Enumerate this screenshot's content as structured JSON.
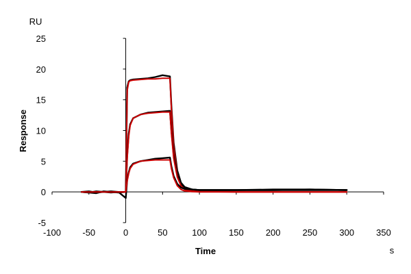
{
  "chart_data": {
    "type": "line",
    "title": "",
    "xlabel": "Time",
    "ylabel": "Response",
    "x_unit": "s",
    "y_unit": "RU",
    "xlim": [
      -100,
      350
    ],
    "ylim": [
      -5,
      25
    ],
    "x_ticks": [
      -100,
      -50,
      0,
      50,
      100,
      150,
      200,
      250,
      300,
      350
    ],
    "y_ticks": [
      -5,
      0,
      5,
      10,
      15,
      20,
      25
    ],
    "grid": false,
    "legend": "none",
    "colors": {
      "measured": "#000000",
      "fit": "#cc0000"
    },
    "series": [
      {
        "kind": "measured",
        "color": "#000000",
        "x": [
          -60,
          -50,
          -40,
          -30,
          -20,
          -10,
          0,
          1,
          2,
          4,
          6,
          10,
          20,
          30,
          40,
          50,
          60,
          62,
          65,
          70,
          75,
          80,
          90,
          100,
          150,
          200,
          250,
          300
        ],
        "y": [
          0.0,
          -0.1,
          -0.2,
          0.1,
          0.0,
          -0.1,
          0.0,
          8.5,
          17.0,
          18.0,
          18.2,
          18.3,
          18.4,
          18.5,
          18.7,
          19.0,
          18.8,
          14.0,
          8.0,
          3.5,
          1.5,
          0.8,
          0.4,
          0.3,
          0.3,
          0.4,
          0.4,
          0.3
        ]
      },
      {
        "kind": "fit",
        "color": "#cc0000",
        "x": [
          -60,
          0,
          1,
          2,
          4,
          6,
          10,
          20,
          30,
          40,
          50,
          60,
          62,
          65,
          70,
          75,
          80,
          90,
          100,
          150,
          200,
          250,
          300
        ],
        "y": [
          0.0,
          0.0,
          8.0,
          16.5,
          17.9,
          18.1,
          18.2,
          18.3,
          18.4,
          18.4,
          18.5,
          18.5,
          13.5,
          7.5,
          3.0,
          1.2,
          0.5,
          0.2,
          0.1,
          0.0,
          0.0,
          0.0,
          0.0
        ]
      },
      {
        "kind": "measured",
        "color": "#000000",
        "x": [
          -60,
          -50,
          -40,
          -30,
          -20,
          -10,
          0,
          2,
          4,
          6,
          10,
          20,
          30,
          40,
          50,
          60,
          62,
          65,
          70,
          75,
          80,
          90,
          100,
          150,
          200,
          250,
          300
        ],
        "y": [
          0.0,
          -0.1,
          0.1,
          0.0,
          -0.1,
          0.0,
          0.0,
          6.0,
          9.5,
          11.0,
          12.0,
          12.6,
          12.9,
          13.0,
          13.1,
          13.2,
          10.0,
          6.0,
          2.8,
          1.2,
          0.7,
          0.4,
          0.3,
          0.3,
          0.3,
          0.4,
          0.3
        ]
      },
      {
        "kind": "fit",
        "color": "#cc0000",
        "x": [
          -60,
          0,
          2,
          4,
          6,
          10,
          20,
          30,
          40,
          50,
          60,
          62,
          65,
          70,
          75,
          80,
          90,
          100,
          150,
          200,
          250,
          300
        ],
        "y": [
          0.0,
          0.0,
          5.5,
          9.0,
          10.8,
          12.0,
          12.6,
          12.8,
          12.9,
          13.0,
          13.0,
          9.5,
          5.5,
          2.4,
          1.0,
          0.4,
          0.1,
          0.05,
          0.0,
          0.0,
          0.0,
          0.0
        ]
      },
      {
        "kind": "measured",
        "color": "#000000",
        "x": [
          -60,
          -50,
          -40,
          -30,
          -20,
          -10,
          0,
          2,
          4,
          6,
          10,
          20,
          30,
          40,
          50,
          60,
          62,
          65,
          70,
          75,
          80,
          90,
          100,
          150,
          200,
          250,
          300
        ],
        "y": [
          0.0,
          0.1,
          -0.1,
          0.0,
          0.1,
          0.0,
          -1.0,
          2.0,
          3.2,
          4.0,
          4.6,
          5.0,
          5.2,
          5.4,
          5.5,
          5.6,
          4.2,
          2.6,
          1.3,
          0.7,
          0.5,
          0.4,
          0.3,
          0.3,
          0.3,
          0.3,
          0.3
        ]
      },
      {
        "kind": "fit",
        "color": "#cc0000",
        "x": [
          -60,
          0,
          2,
          4,
          6,
          10,
          20,
          30,
          40,
          50,
          60,
          62,
          65,
          70,
          75,
          80,
          90,
          100,
          150,
          200,
          250,
          300
        ],
        "y": [
          0.0,
          0.0,
          1.8,
          3.0,
          3.8,
          4.5,
          5.0,
          5.1,
          5.2,
          5.2,
          5.2,
          3.8,
          2.3,
          1.0,
          0.4,
          0.15,
          0.05,
          0.0,
          0.0,
          0.0,
          0.0,
          0.0
        ]
      }
    ]
  }
}
